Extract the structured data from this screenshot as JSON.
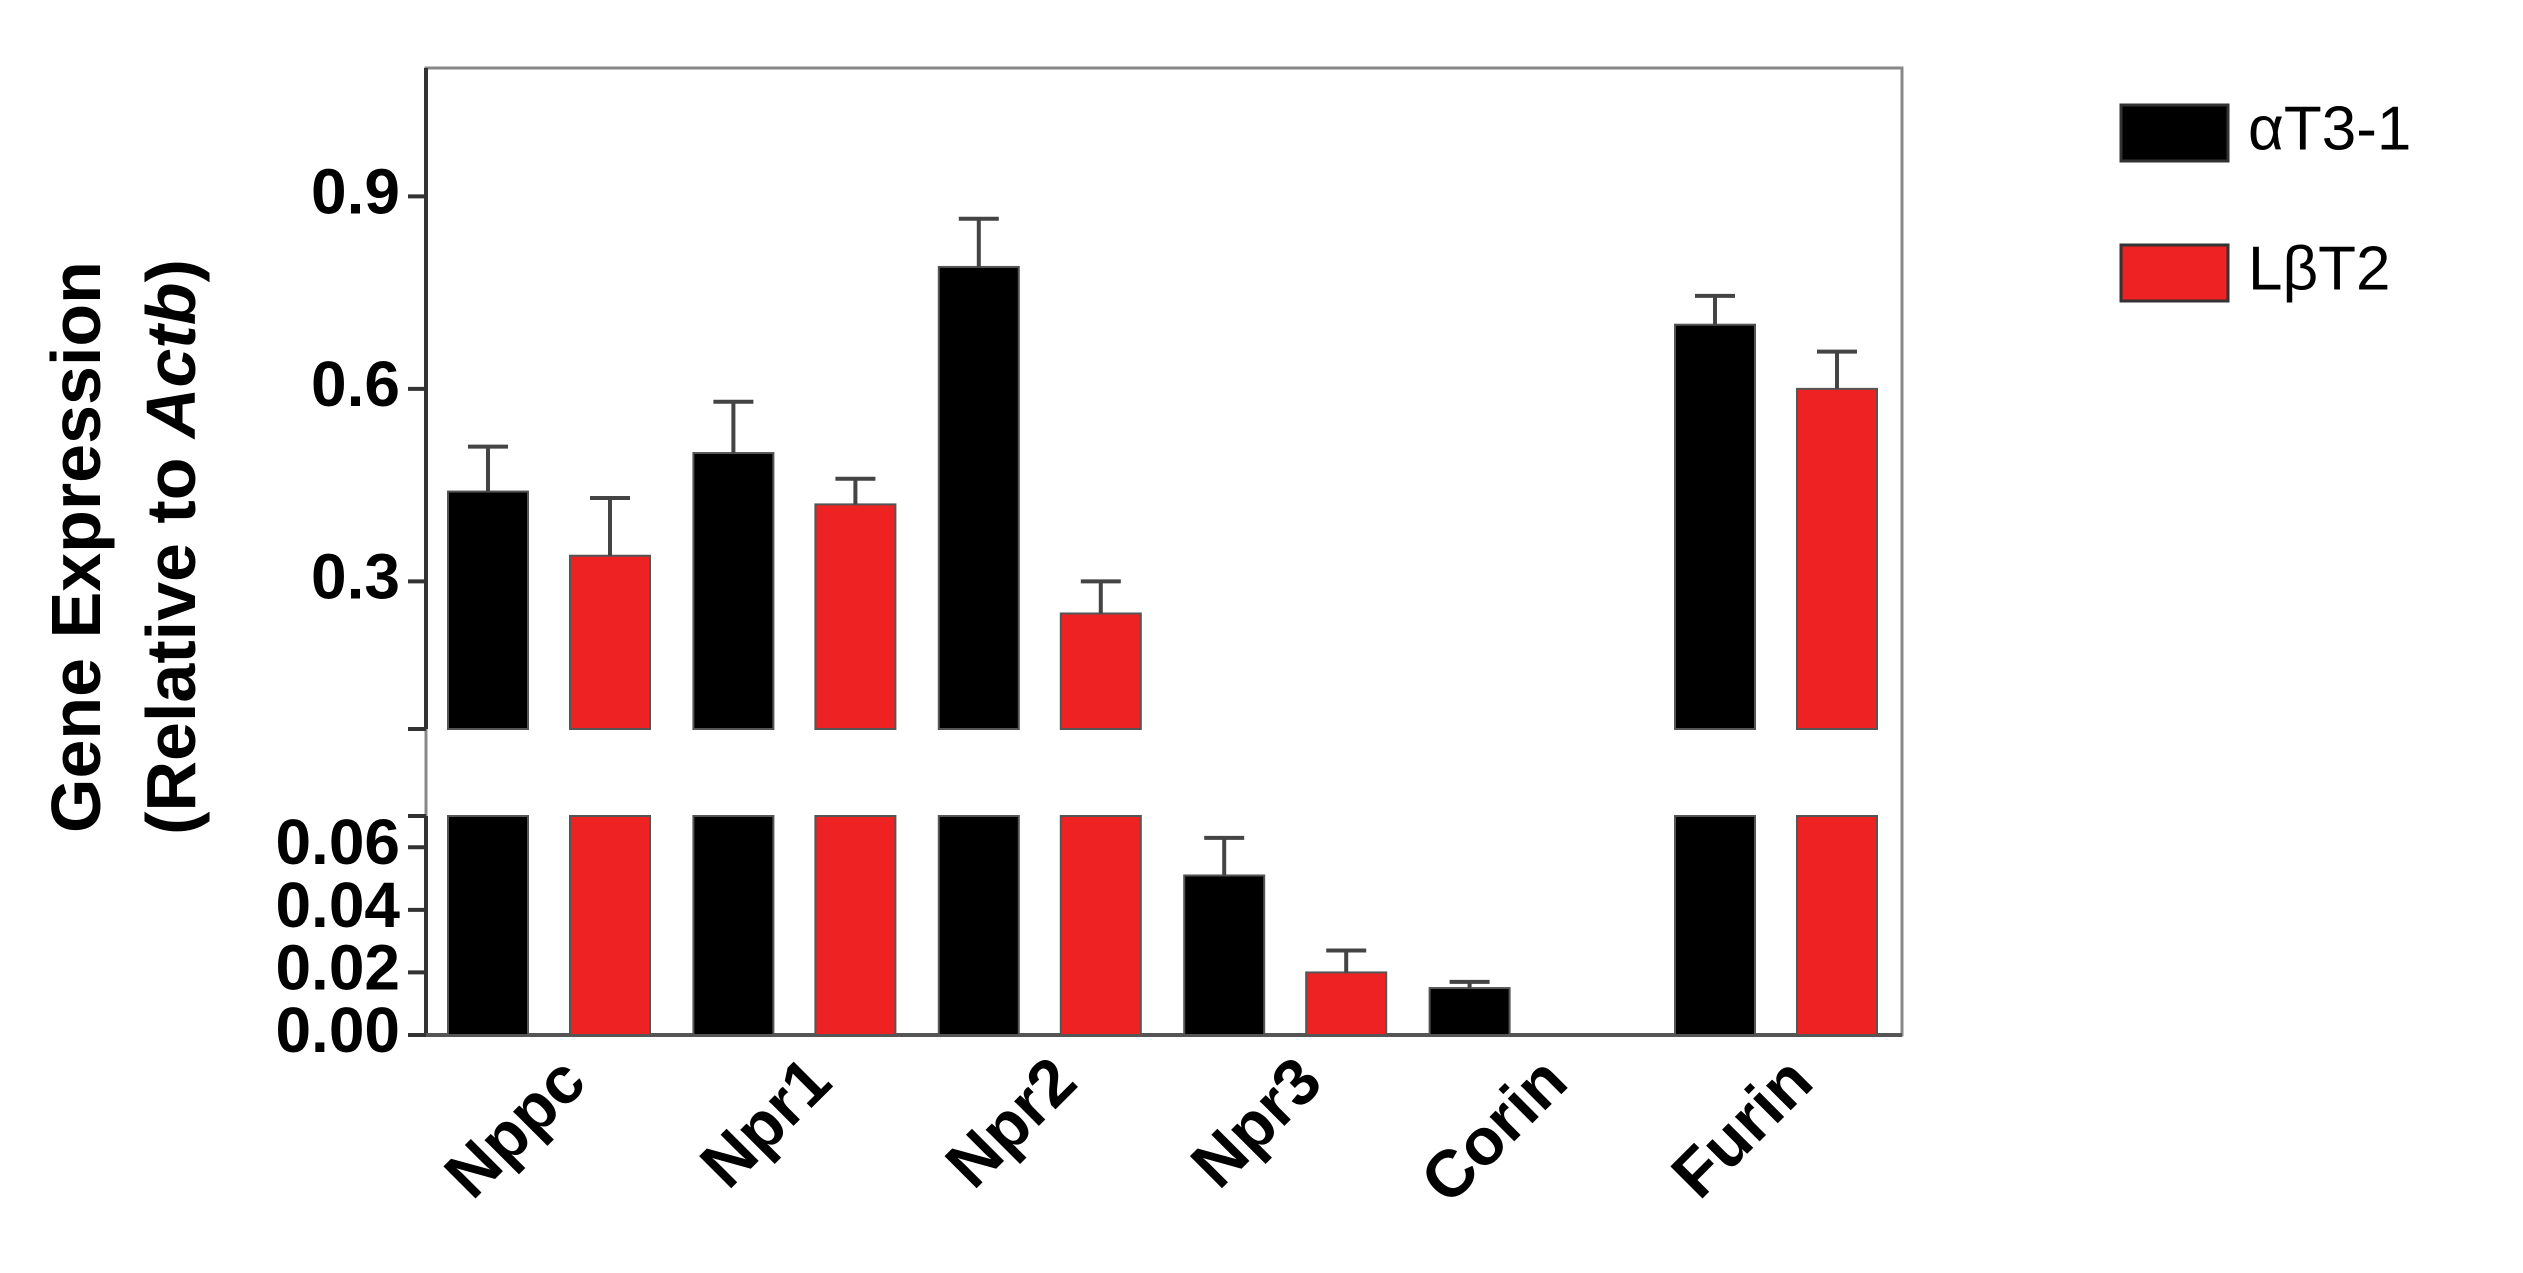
{
  "chart_data": {
    "type": "bar",
    "ylabel": [
      [
        "Gene Expression"
      ],
      [
        "(Relative to ",
        "Actb",
        ")"
      ]
    ],
    "categories": [
      "Nppc",
      "Npr1",
      "Npr2",
      "Npr3",
      "Corin",
      "Furin"
    ],
    "series": [
      {
        "name": "αT3-1",
        "color": "#000000",
        "values": [
          0.44,
          0.5,
          0.79,
          0.051,
          0.015,
          0.7
        ],
        "errors": [
          0.07,
          0.08,
          0.075,
          0.012,
          0.002,
          0.045
        ]
      },
      {
        "name": "LβT2",
        "color": "#ee2222",
        "values": [
          0.34,
          0.42,
          0.25,
          0.02,
          null,
          0.6
        ],
        "errors": [
          0.09,
          0.04,
          0.05,
          0.007,
          null,
          0.058
        ]
      }
    ],
    "segments": [
      {
        "ylim": [
          0,
          0.07
        ],
        "yticks": [
          {
            "value": 0,
            "label": "0.00"
          },
          {
            "value": 0.02,
            "label": "0.02"
          },
          {
            "value": 0.04,
            "label": "0.04"
          },
          {
            "value": 0.06,
            "label": "0.06"
          }
        ]
      },
      {
        "ylim": [
          0.07,
          1.1
        ],
        "yticks": [
          0.3,
          0.6,
          0.9
        ]
      }
    ],
    "legend": "right"
  }
}
